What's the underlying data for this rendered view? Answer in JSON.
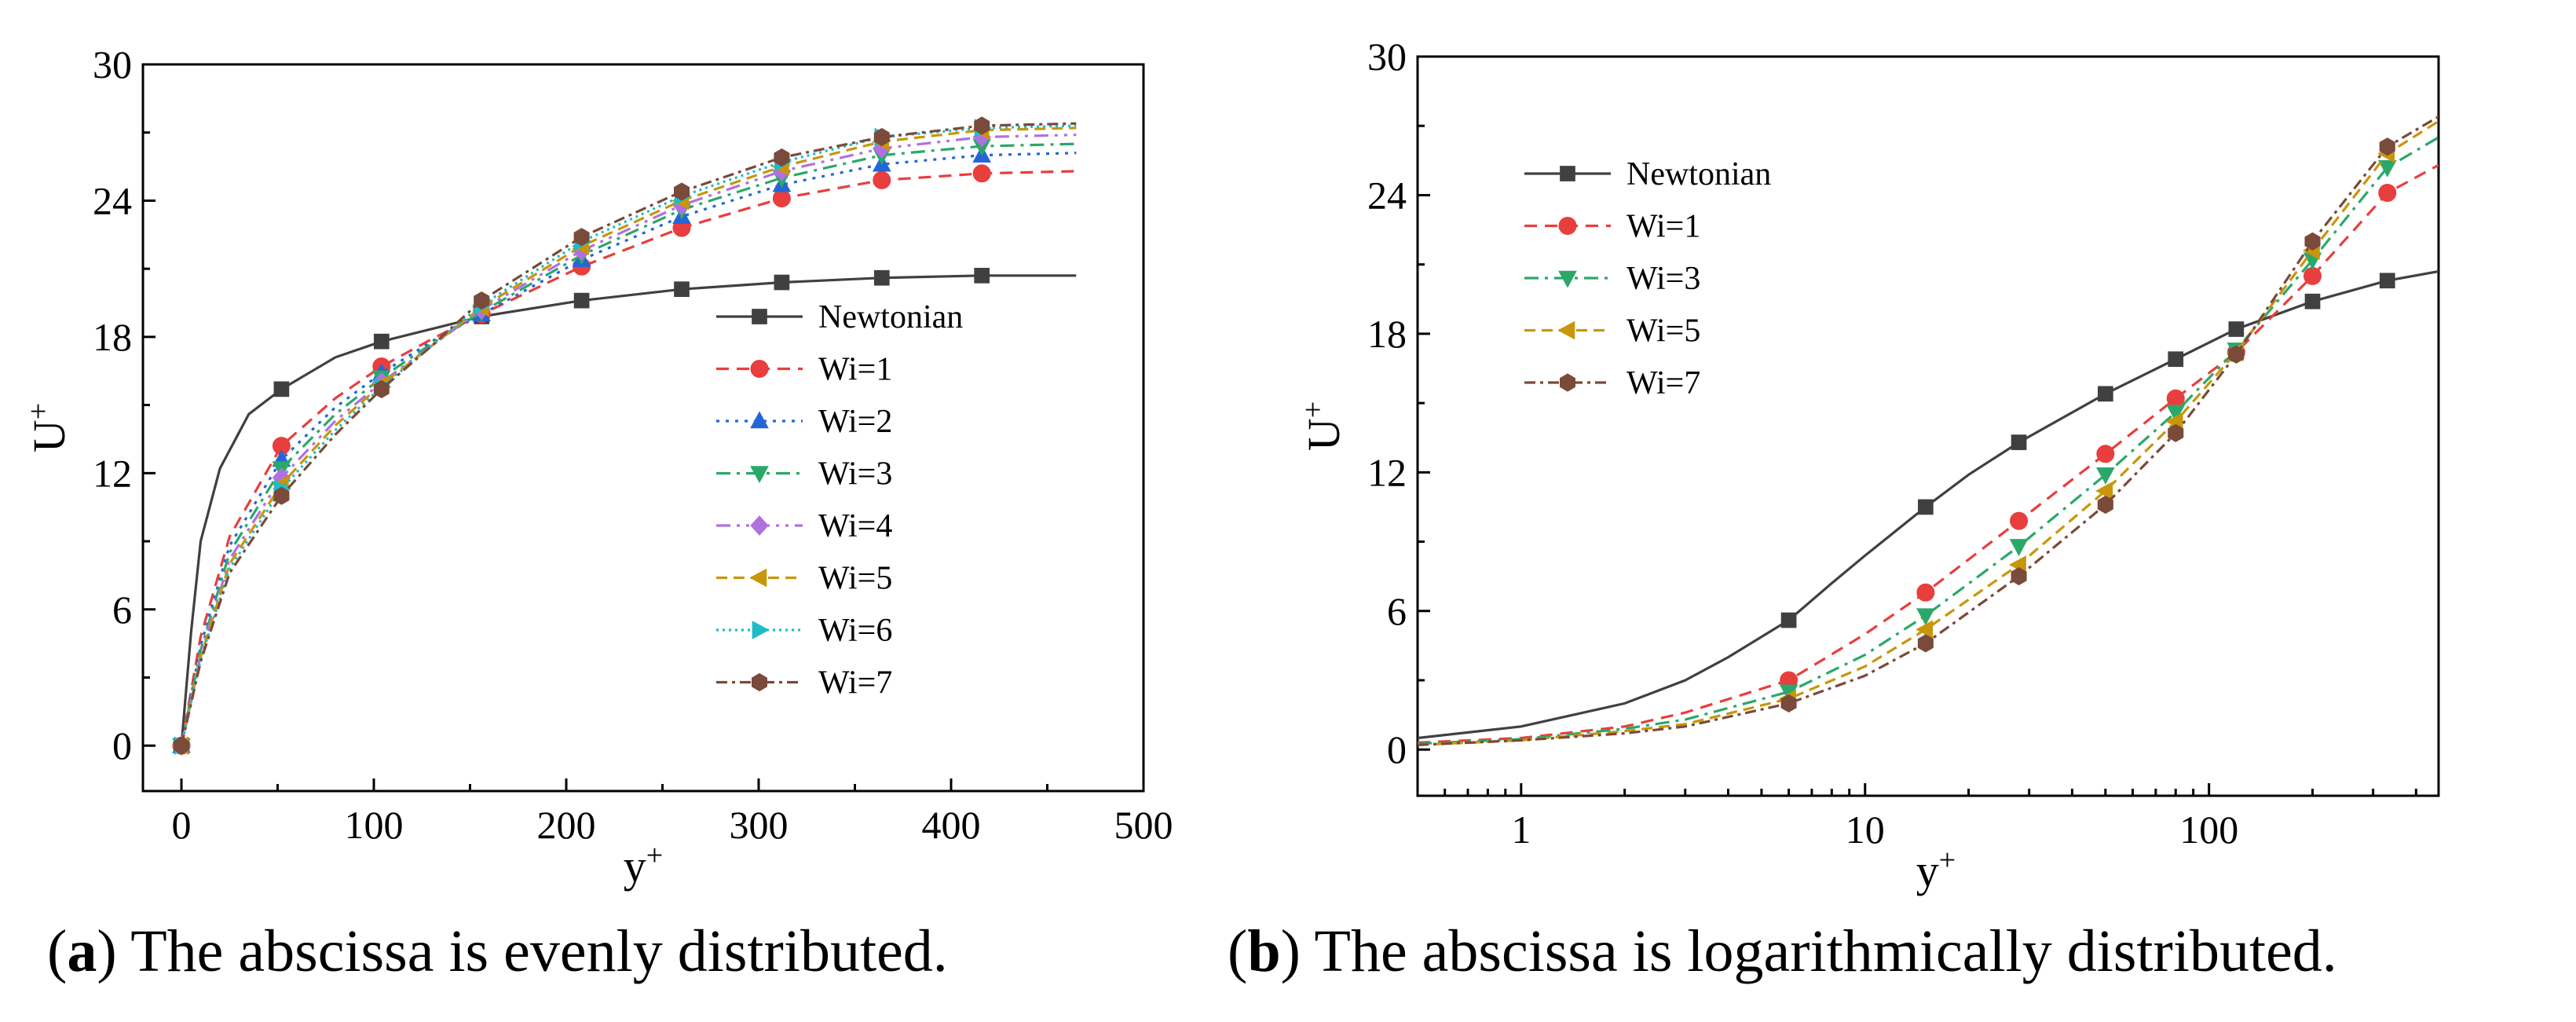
{
  "figure": {
    "caption_a": {
      "letter": "a",
      "text": ") The abscissa is evenly distributed."
    },
    "caption_b": {
      "letter": "b",
      "text": ") The abscissa is logarithmically distributed."
    }
  },
  "chart_data": [
    {
      "id": "a",
      "type": "line",
      "xscale": "linear",
      "xlim": [
        -20,
        500
      ],
      "ylim": [
        -2,
        30
      ],
      "xticks": [
        0,
        100,
        200,
        300,
        400,
        500
      ],
      "yticks": [
        0,
        6,
        12,
        18,
        24,
        30
      ],
      "xlabel": "y",
      "xlabel_sup": "+",
      "ylabel": "U",
      "ylabel_sup": "+",
      "legend_position": "center-right",
      "series": [
        {
          "name": "Newtonian",
          "color": "#404040",
          "dash": "",
          "marker": "square",
          "x": [
            0,
            2,
            5,
            10,
            20,
            35,
            52,
            80,
            104,
            156,
            208,
            260,
            312,
            364,
            416,
            465
          ],
          "y": [
            0,
            2,
            5,
            9,
            12.2,
            14.6,
            15.7,
            17.1,
            17.8,
            18.9,
            19.6,
            20.1,
            20.4,
            20.6,
            20.7,
            20.7
          ],
          "mx": [
            0,
            52,
            104,
            156,
            208,
            260,
            312,
            364,
            416
          ],
          "my": [
            0,
            15.7,
            17.8,
            18.9,
            19.6,
            20.1,
            20.4,
            20.6,
            20.7
          ]
        },
        {
          "name": "Wi=1",
          "color": "#e83e3e",
          "dash": "16,10",
          "marker": "circle",
          "x": [
            0,
            10,
            25,
            52,
            80,
            104,
            130,
            156,
            208,
            260,
            312,
            364,
            416,
            465
          ],
          "y": [
            0,
            4.8,
            9.2,
            13.2,
            15.3,
            16.7,
            17.9,
            19.0,
            21.1,
            22.8,
            24.1,
            24.9,
            25.2,
            25.3
          ],
          "mx": [
            0,
            52,
            104,
            156,
            208,
            260,
            312,
            364,
            416
          ],
          "my": [
            0,
            13.2,
            16.7,
            19.0,
            21.1,
            22.8,
            24.1,
            24.9,
            25.2
          ]
        },
        {
          "name": "Wi=2",
          "color": "#2566d6",
          "dash": "4,8",
          "marker": "triangle-up",
          "x": [
            0,
            10,
            25,
            52,
            80,
            104,
            130,
            156,
            208,
            260,
            312,
            364,
            416,
            465
          ],
          "y": [
            0,
            4.4,
            8.8,
            12.6,
            14.9,
            16.4,
            17.8,
            19.0,
            21.4,
            23.3,
            24.7,
            25.6,
            26.0,
            26.1
          ],
          "mx": [
            0,
            52,
            104,
            156,
            208,
            260,
            312,
            364,
            416
          ],
          "my": [
            0,
            12.6,
            16.4,
            19.0,
            21.4,
            23.3,
            24.7,
            25.6,
            26.0
          ]
        },
        {
          "name": "Wi=3",
          "color": "#2aa86a",
          "dash": "18,8,4,8",
          "marker": "triangle-down",
          "x": [
            0,
            10,
            25,
            52,
            80,
            104,
            130,
            156,
            208,
            260,
            312,
            364,
            416,
            465
          ],
          "y": [
            0,
            4.2,
            8.5,
            12.2,
            14.6,
            16.2,
            17.7,
            19.1,
            21.6,
            23.6,
            25.0,
            26.0,
            26.4,
            26.5
          ],
          "mx": [
            0,
            52,
            104,
            156,
            208,
            260,
            312,
            364,
            416
          ],
          "my": [
            0,
            12.2,
            16.2,
            19.1,
            21.6,
            23.6,
            25.0,
            26.0,
            26.4
          ]
        },
        {
          "name": "Wi=4",
          "color": "#b071e0",
          "dash": "18,8,4,8,4,8",
          "marker": "diamond",
          "x": [
            0,
            10,
            25,
            52,
            80,
            104,
            130,
            156,
            208,
            260,
            312,
            364,
            416,
            465
          ],
          "y": [
            0,
            4.0,
            8.2,
            11.8,
            14.3,
            16.0,
            17.6,
            19.2,
            21.8,
            23.8,
            25.3,
            26.3,
            26.8,
            26.9
          ],
          "mx": [
            0,
            52,
            104,
            156,
            208,
            260,
            312,
            364,
            416
          ],
          "my": [
            0,
            11.8,
            16.0,
            19.2,
            21.8,
            23.8,
            25.3,
            26.3,
            26.8
          ]
        },
        {
          "name": "Wi=5",
          "color": "#c8960a",
          "dash": "14,8",
          "marker": "triangle-left",
          "x": [
            0,
            10,
            25,
            52,
            80,
            104,
            130,
            156,
            208,
            260,
            312,
            364,
            416,
            465
          ],
          "y": [
            0,
            3.9,
            8.0,
            11.5,
            14.1,
            15.9,
            17.6,
            19.3,
            22.0,
            24.0,
            25.5,
            26.6,
            27.1,
            27.2
          ],
          "mx": [
            0,
            52,
            104,
            156,
            208,
            260,
            312,
            364,
            416
          ],
          "my": [
            0,
            11.5,
            15.9,
            19.3,
            22.0,
            24.0,
            25.5,
            26.6,
            27.1
          ]
        },
        {
          "name": "Wi=6",
          "color": "#1fbcc8",
          "dash": "3,5",
          "marker": "triangle-right",
          "x": [
            0,
            10,
            25,
            52,
            80,
            104,
            130,
            156,
            208,
            260,
            312,
            364,
            416,
            465
          ],
          "y": [
            0,
            3.8,
            7.8,
            11.3,
            13.9,
            15.8,
            17.6,
            19.4,
            22.2,
            24.2,
            25.7,
            26.8,
            27.2,
            27.3
          ],
          "mx": [
            0,
            52,
            104,
            156,
            208,
            260,
            312,
            364,
            416
          ],
          "my": [
            0,
            11.3,
            15.8,
            19.4,
            22.2,
            24.2,
            25.7,
            26.8,
            27.2
          ]
        },
        {
          "name": "Wi=7",
          "color": "#7a4a3a",
          "dash": "14,6,4,6",
          "marker": "hexagon",
          "x": [
            0,
            10,
            25,
            52,
            80,
            104,
            130,
            156,
            208,
            260,
            312,
            364,
            416,
            465
          ],
          "y": [
            0,
            3.7,
            7.6,
            11.0,
            13.7,
            15.7,
            17.6,
            19.6,
            22.4,
            24.4,
            25.9,
            26.8,
            27.3,
            27.4
          ],
          "mx": [
            0,
            52,
            104,
            156,
            208,
            260,
            312,
            364,
            416
          ],
          "my": [
            0,
            11.0,
            15.7,
            19.6,
            22.4,
            24.4,
            25.9,
            26.8,
            27.3
          ]
        }
      ]
    },
    {
      "id": "b",
      "type": "line",
      "xscale": "log",
      "xlim": [
        0.5,
        465
      ],
      "ylim": [
        -2,
        30
      ],
      "xticks": [
        1,
        10,
        100
      ],
      "yticks": [
        0,
        6,
        12,
        18,
        24,
        30
      ],
      "xlabel": "y",
      "xlabel_sup": "+",
      "ylabel": "U",
      "ylabel_sup": "+",
      "legend_position": "top-left",
      "series": [
        {
          "name": "Newtonian",
          "color": "#404040",
          "dash": "",
          "marker": "square",
          "x": [
            0.5,
            1,
            2,
            3,
            4,
            6,
            8,
            10,
            15,
            20,
            28,
            50,
            80,
            120,
            200,
            330,
            465
          ],
          "y": [
            0.5,
            1.0,
            2.0,
            3.0,
            4.0,
            5.6,
            7.2,
            8.4,
            10.5,
            11.9,
            13.3,
            15.4,
            16.9,
            18.2,
            19.4,
            20.3,
            20.7
          ],
          "mx": [
            6,
            15,
            28,
            50,
            80,
            120,
            200,
            330
          ],
          "my": [
            5.6,
            10.5,
            13.3,
            15.4,
            16.9,
            18.2,
            19.4,
            20.3
          ]
        },
        {
          "name": "Wi=1",
          "color": "#e83e3e",
          "dash": "16,10",
          "marker": "circle",
          "x": [
            0.5,
            1,
            2,
            3,
            6,
            10,
            15,
            28,
            50,
            80,
            120,
            200,
            330,
            465
          ],
          "y": [
            0.3,
            0.5,
            1.0,
            1.6,
            3.0,
            5.0,
            6.8,
            9.9,
            12.8,
            15.2,
            17.2,
            20.5,
            24.1,
            25.3
          ],
          "mx": [
            6,
            15,
            28,
            50,
            80,
            120,
            200,
            330
          ],
          "my": [
            3.0,
            6.8,
            9.9,
            12.8,
            15.2,
            17.2,
            20.5,
            24.1
          ]
        },
        {
          "name": "Wi=3",
          "color": "#2aa86a",
          "dash": "18,8,4,8",
          "marker": "triangle-down",
          "x": [
            0.5,
            1,
            2,
            3,
            6,
            10,
            15,
            28,
            50,
            80,
            120,
            200,
            330,
            465
          ],
          "y": [
            0.25,
            0.45,
            0.9,
            1.3,
            2.5,
            4.1,
            5.8,
            8.8,
            11.9,
            14.6,
            17.3,
            21.2,
            25.2,
            26.5
          ],
          "mx": [
            6,
            15,
            28,
            50,
            80,
            120,
            200,
            330
          ],
          "my": [
            2.5,
            5.8,
            8.8,
            11.9,
            14.6,
            17.3,
            21.2,
            25.2
          ]
        },
        {
          "name": "Wi=5",
          "color": "#c8960a",
          "dash": "14,8",
          "marker": "triangle-left",
          "x": [
            0.5,
            1,
            2,
            3,
            6,
            10,
            15,
            28,
            50,
            80,
            120,
            200,
            330,
            465
          ],
          "y": [
            0.2,
            0.4,
            0.8,
            1.1,
            2.2,
            3.6,
            5.2,
            8.0,
            11.2,
            14.2,
            17.2,
            21.6,
            25.8,
            27.2
          ],
          "mx": [
            6,
            15,
            28,
            50,
            80,
            120,
            200,
            330
          ],
          "my": [
            2.2,
            5.2,
            8.0,
            11.2,
            14.2,
            17.2,
            21.6,
            25.8
          ]
        },
        {
          "name": "Wi=7",
          "color": "#7a4a3a",
          "dash": "14,6,4,6",
          "marker": "hexagon",
          "x": [
            0.5,
            1,
            2,
            3,
            6,
            10,
            15,
            28,
            50,
            80,
            120,
            200,
            330,
            465
          ],
          "y": [
            0.2,
            0.4,
            0.7,
            1.0,
            2.0,
            3.2,
            4.6,
            7.5,
            10.6,
            13.7,
            17.1,
            22.0,
            26.1,
            27.4
          ],
          "mx": [
            6,
            15,
            28,
            50,
            80,
            120,
            200,
            330
          ],
          "my": [
            2.0,
            4.6,
            7.5,
            10.6,
            13.7,
            17.1,
            22.0,
            26.1
          ]
        }
      ]
    }
  ]
}
